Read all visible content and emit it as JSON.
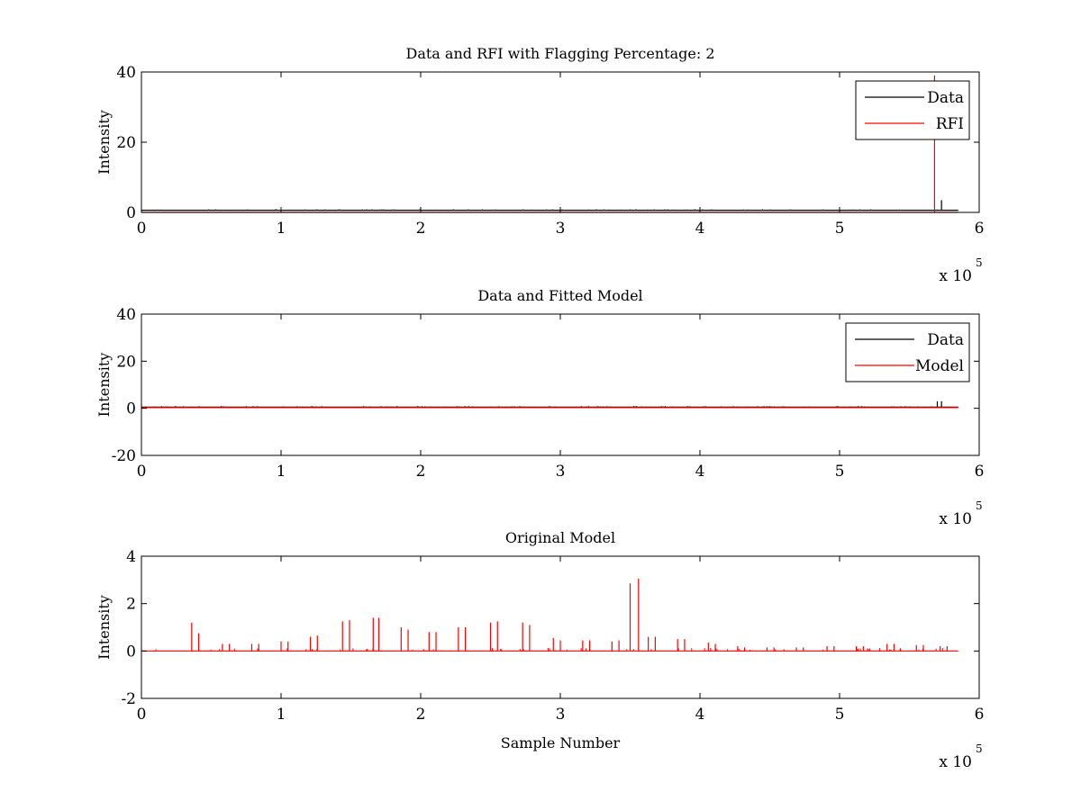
{
  "chart_data": [
    {
      "type": "line",
      "title": "Data and RFI with Flagging Percentage: 2",
      "xlabel": "",
      "ylabel": "Intensity",
      "xlim": [
        0,
        600000
      ],
      "ylim": [
        0,
        40
      ],
      "xticks": [
        0,
        1,
        2,
        3,
        4,
        5,
        6
      ],
      "yticks": [
        0,
        20,
        40
      ],
      "x_multiplier": "x 10",
      "x_multiplier_exp": "5",
      "grid": false,
      "legend": "top-right",
      "series": [
        {
          "name": "Data",
          "color": "#000000",
          "baseline": 0.6,
          "x": [
            570000,
            573000,
            574000,
            575000
          ],
          "y": [
            0.8,
            3.5,
            0.6,
            0.6
          ]
        },
        {
          "name": "RFI",
          "color": "#ff0000",
          "baseline": 0,
          "x": [
            567000,
            568000,
            569000
          ],
          "y": [
            0,
            39,
            0
          ]
        }
      ]
    },
    {
      "type": "line",
      "title": "Data and Fitted Model",
      "xlabel": "",
      "ylabel": "Intensity",
      "xlim": [
        0,
        600000
      ],
      "ylim": [
        -20,
        40
      ],
      "xticks": [
        0,
        1,
        2,
        3,
        4,
        5,
        6
      ],
      "yticks": [
        -20,
        0,
        20,
        40
      ],
      "x_multiplier": "x 10",
      "x_multiplier_exp": "5",
      "grid": false,
      "legend": "top-right",
      "series": [
        {
          "name": "Data",
          "color": "#000000",
          "baseline": 0.5,
          "x": [
            566000,
            570000,
            573000,
            574000
          ],
          "y": [
            0.8,
            3.0,
            3.0,
            0.5
          ]
        },
        {
          "name": "Model",
          "color": "#ff0000",
          "baseline": 0.3,
          "x": [],
          "y": []
        }
      ]
    },
    {
      "type": "line",
      "title": "Original Model",
      "xlabel": "Sample Number",
      "ylabel": "Intensity",
      "xlim": [
        0,
        600000
      ],
      "ylim": [
        -2,
        4
      ],
      "xticks": [
        0,
        1,
        2,
        3,
        4,
        5,
        6
      ],
      "yticks": [
        -2,
        0,
        2,
        4
      ],
      "x_multiplier": "x 10",
      "x_multiplier_exp": "5",
      "grid": false,
      "legend": "",
      "series": [
        {
          "color": "#ff0000",
          "baseline": 0,
          "x": [
            36000,
            41000,
            58000,
            63000,
            79000,
            84000,
            100000,
            105000,
            121000,
            126000,
            144000,
            149000,
            166000,
            170000,
            186000,
            191000,
            206000,
            211000,
            227000,
            232000,
            250000,
            255000,
            273000,
            278000,
            295000,
            300000,
            316000,
            321000,
            337000,
            342000,
            350000,
            356000,
            363000,
            368000,
            384000,
            389000,
            406000,
            411000,
            427000,
            432000,
            448000,
            453000,
            469000,
            474000,
            491000,
            496000,
            512000,
            517000,
            534000,
            539000,
            555000,
            560000,
            572000,
            577000
          ],
          "y": [
            1.2,
            0.75,
            0.3,
            0.3,
            0.3,
            0.3,
            0.4,
            0.4,
            0.6,
            0.65,
            1.25,
            1.3,
            1.4,
            1.4,
            1.0,
            0.9,
            0.8,
            0.8,
            1.0,
            1.0,
            1.2,
            1.25,
            1.2,
            1.1,
            0.55,
            0.45,
            0.45,
            0.45,
            0.4,
            0.45,
            2.85,
            3.05,
            0.6,
            0.6,
            0.5,
            0.5,
            0.35,
            0.3,
            0.2,
            0.15,
            0.15,
            0.15,
            0.15,
            0.15,
            0.2,
            0.2,
            0.2,
            0.2,
            0.3,
            0.3,
            0.25,
            0.25,
            0.2,
            0.2
          ]
        }
      ]
    }
  ]
}
